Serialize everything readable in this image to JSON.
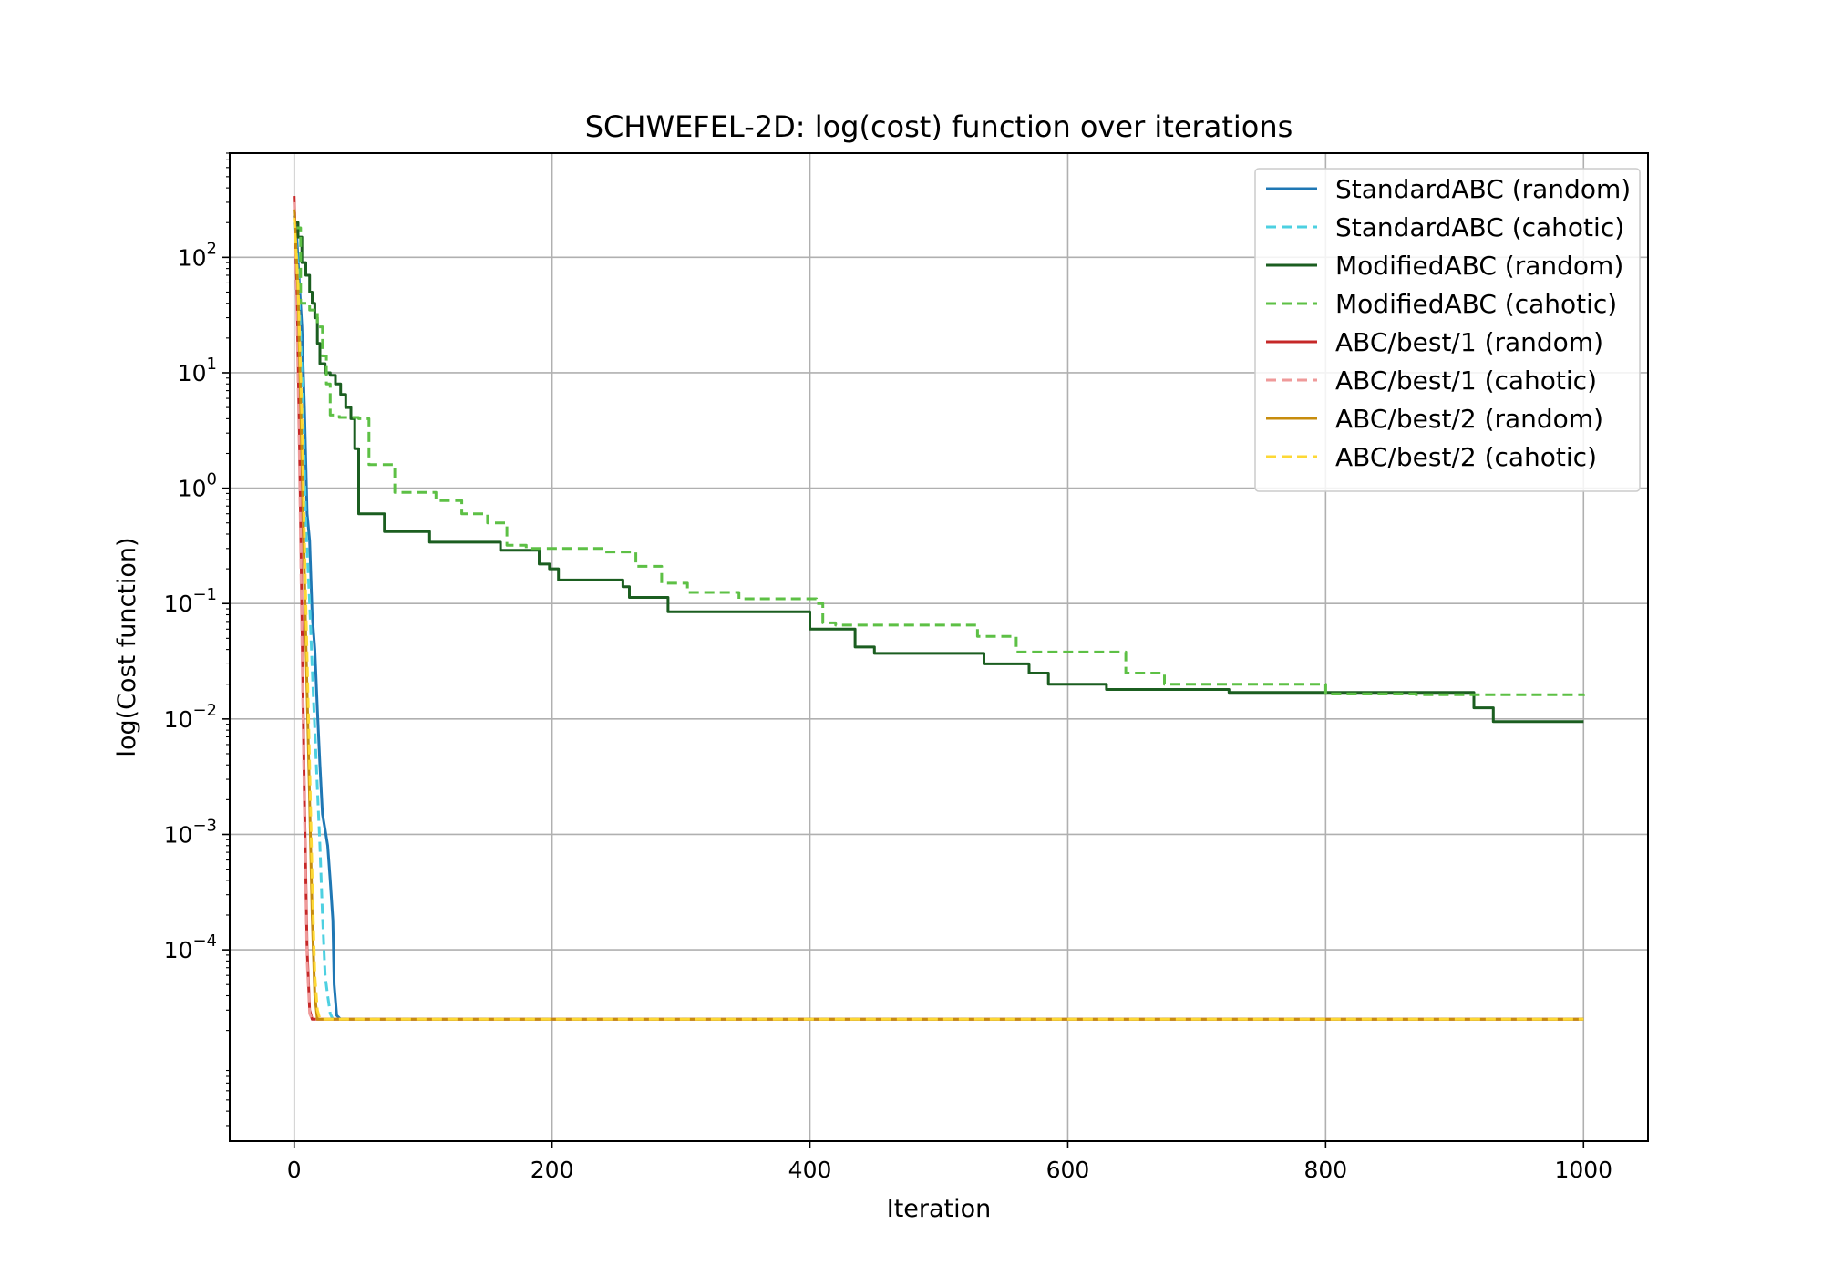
{
  "chart_data": {
    "type": "line",
    "title": "SCHWEFEL-2D: log(cost) function over iterations",
    "xlabel": "Iteration",
    "ylabel": "log(Cost function)",
    "xlim": [
      -50,
      1050
    ],
    "ylim": [
      2.2e-06,
      800
    ],
    "yscale": "log",
    "grid": true,
    "legend_position": "top-right",
    "x_ticks": [
      {
        "value": 0,
        "label": "0"
      },
      {
        "value": 200,
        "label": "200"
      },
      {
        "value": 400,
        "label": "400"
      },
      {
        "value": 600,
        "label": "600"
      },
      {
        "value": 800,
        "label": "800"
      },
      {
        "value": 1000,
        "label": "1000"
      }
    ],
    "y_ticks": [
      {
        "value": 0.0001,
        "base": "10",
        "exp": "−4"
      },
      {
        "value": 0.001,
        "base": "10",
        "exp": "−3"
      },
      {
        "value": 0.01,
        "base": "10",
        "exp": "−2"
      },
      {
        "value": 0.1,
        "base": "10",
        "exp": "−1"
      },
      {
        "value": 1,
        "base": "10",
        "exp": "0"
      },
      {
        "value": 10,
        "base": "10",
        "exp": "1"
      },
      {
        "value": 100,
        "base": "10",
        "exp": "2"
      }
    ],
    "series": [
      {
        "name": "StandardABC (random)",
        "color": "#1f77b4",
        "dash": "solid",
        "step": false,
        "points": [
          [
            0,
            230
          ],
          [
            2,
            150
          ],
          [
            4,
            60
          ],
          [
            6,
            25
          ],
          [
            8,
            5
          ],
          [
            10,
            0.6
          ],
          [
            12,
            0.35
          ],
          [
            14,
            0.08
          ],
          [
            16,
            0.04
          ],
          [
            18,
            0.012
          ],
          [
            20,
            0.004
          ],
          [
            22,
            0.0015
          ],
          [
            24,
            0.0011
          ],
          [
            26,
            0.0008
          ],
          [
            28,
            0.0004
          ],
          [
            30,
            0.00018
          ],
          [
            31,
            5e-05
          ],
          [
            33,
            2.7e-05
          ],
          [
            36,
            2.5e-05
          ],
          [
            1000,
            2.5e-05
          ]
        ]
      },
      {
        "name": "StandardABC (cahotic)",
        "color": "#4dd0e1",
        "dash": "dashed",
        "step": false,
        "points": [
          [
            0,
            200
          ],
          [
            3,
            80
          ],
          [
            6,
            10
          ],
          [
            9,
            0.5
          ],
          [
            12,
            0.1
          ],
          [
            15,
            0.015
          ],
          [
            18,
            0.0025
          ],
          [
            20,
            0.0008
          ],
          [
            22,
            0.0002
          ],
          [
            24,
            6e-05
          ],
          [
            26,
            4e-05
          ],
          [
            28,
            2.8e-05
          ],
          [
            30,
            2.5e-05
          ],
          [
            1000,
            2.5e-05
          ]
        ]
      },
      {
        "name": "ModifiedABC (random)",
        "color": "#1b5e20",
        "dash": "solid",
        "step": true,
        "points": [
          [
            0,
            200
          ],
          [
            3,
            150
          ],
          [
            6,
            90
          ],
          [
            9,
            70
          ],
          [
            12,
            50
          ],
          [
            14,
            40
          ],
          [
            16,
            30
          ],
          [
            18,
            18
          ],
          [
            20,
            12
          ],
          [
            24,
            10
          ],
          [
            28,
            9.5
          ],
          [
            32,
            8
          ],
          [
            36,
            6.5
          ],
          [
            40,
            5
          ],
          [
            44,
            4
          ],
          [
            47,
            2.2
          ],
          [
            50,
            0.6
          ],
          [
            70,
            0.42
          ],
          [
            105,
            0.34
          ],
          [
            160,
            0.29
          ],
          [
            190,
            0.22
          ],
          [
            198,
            0.2
          ],
          [
            205,
            0.16
          ],
          [
            255,
            0.14
          ],
          [
            260,
            0.113
          ],
          [
            290,
            0.085
          ],
          [
            400,
            0.06
          ],
          [
            435,
            0.042
          ],
          [
            450,
            0.037
          ],
          [
            535,
            0.03
          ],
          [
            570,
            0.025
          ],
          [
            585,
            0.02
          ],
          [
            630,
            0.018
          ],
          [
            725,
            0.017
          ],
          [
            915,
            0.0125
          ],
          [
            930,
            0.0095
          ],
          [
            1000,
            0.0095
          ]
        ]
      },
      {
        "name": "ModifiedABC (cahotic)",
        "color": "#5dc045",
        "dash": "dashed",
        "step": true,
        "points": [
          [
            0,
            180
          ],
          [
            5,
            40
          ],
          [
            12,
            35
          ],
          [
            18,
            25
          ],
          [
            22,
            14
          ],
          [
            25,
            8
          ],
          [
            28,
            4.3
          ],
          [
            35,
            4.1
          ],
          [
            50,
            4.0
          ],
          [
            58,
            1.6
          ],
          [
            78,
            0.92
          ],
          [
            110,
            0.78
          ],
          [
            130,
            0.6
          ],
          [
            150,
            0.5
          ],
          [
            165,
            0.32
          ],
          [
            180,
            0.3
          ],
          [
            240,
            0.28
          ],
          [
            265,
            0.21
          ],
          [
            285,
            0.15
          ],
          [
            305,
            0.125
          ],
          [
            345,
            0.11
          ],
          [
            405,
            0.1
          ],
          [
            410,
            0.068
          ],
          [
            420,
            0.065
          ],
          [
            530,
            0.052
          ],
          [
            560,
            0.038
          ],
          [
            645,
            0.025
          ],
          [
            675,
            0.02
          ],
          [
            800,
            0.0165
          ],
          [
            870,
            0.0162
          ],
          [
            1000,
            0.0158
          ]
        ]
      },
      {
        "name": "ABC/best/1 (random)",
        "color": "#c62828",
        "dash": "solid",
        "step": false,
        "points": [
          [
            0,
            340
          ],
          [
            2,
            60
          ],
          [
            4,
            3
          ],
          [
            6,
            0.08
          ],
          [
            8,
            0.002
          ],
          [
            10,
            0.0001
          ],
          [
            12,
            3e-05
          ],
          [
            14,
            2.5e-05
          ],
          [
            1000,
            2.5e-05
          ]
        ]
      },
      {
        "name": "ABC/best/1 (cahotic)",
        "color": "#ef9a9a",
        "dash": "dashed",
        "step": false,
        "points": [
          [
            0,
            300
          ],
          [
            2,
            40
          ],
          [
            4,
            2
          ],
          [
            6,
            0.05
          ],
          [
            8,
            0.0015
          ],
          [
            10,
            8e-05
          ],
          [
            12,
            2.8e-05
          ],
          [
            14,
            2.5e-05
          ],
          [
            1000,
            2.5e-05
          ]
        ]
      },
      {
        "name": "ABC/best/2 (random)",
        "color": "#c78c0c",
        "dash": "solid",
        "step": false,
        "points": [
          [
            0,
            260
          ],
          [
            3,
            50
          ],
          [
            6,
            2
          ],
          [
            9,
            0.05
          ],
          [
            12,
            0.002
          ],
          [
            14,
            0.0002
          ],
          [
            16,
            4e-05
          ],
          [
            18,
            2.5e-05
          ],
          [
            1000,
            2.5e-05
          ]
        ]
      },
      {
        "name": "ABC/best/2 (cahotic)",
        "color": "#fdd835",
        "dash": "dashed",
        "step": false,
        "points": [
          [
            0,
            220
          ],
          [
            3,
            60
          ],
          [
            6,
            4
          ],
          [
            9,
            0.1
          ],
          [
            12,
            0.004
          ],
          [
            14,
            0.0004
          ],
          [
            16,
            6e-05
          ],
          [
            18,
            3e-05
          ],
          [
            20,
            2.5e-05
          ],
          [
            1000,
            2.5e-05
          ]
        ]
      }
    ]
  }
}
